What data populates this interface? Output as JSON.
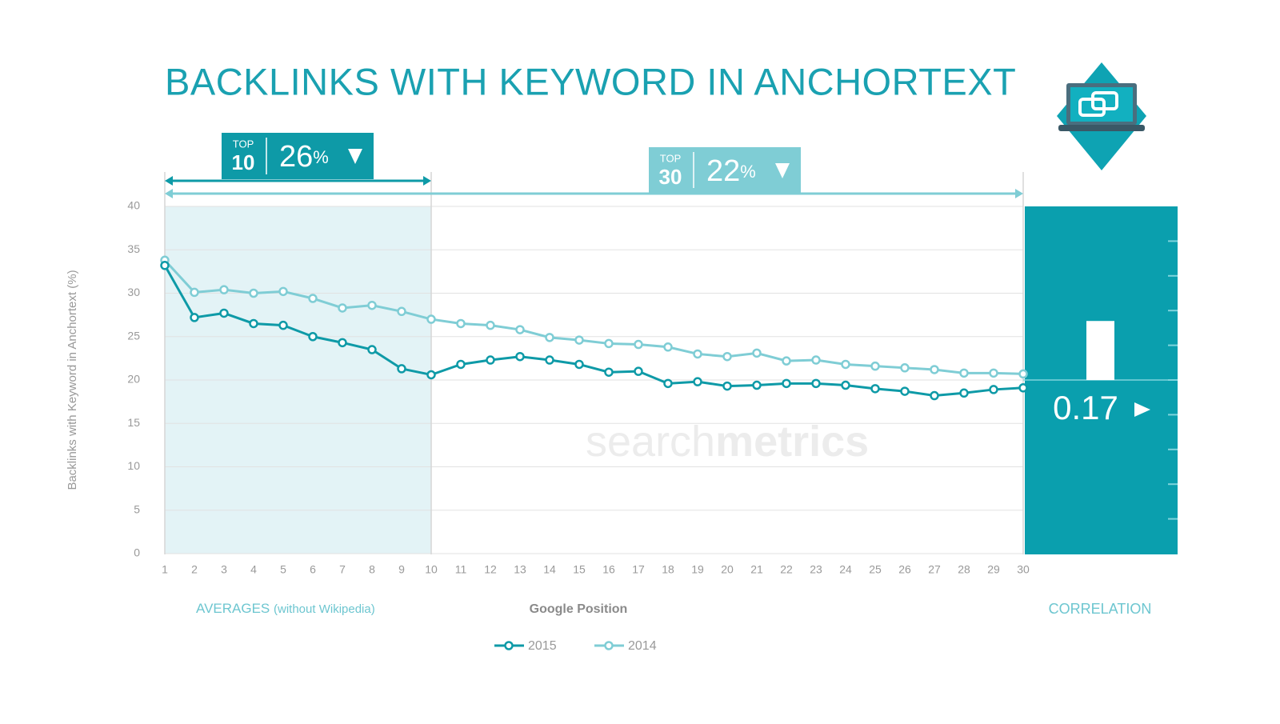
{
  "chart_data": {
    "type": "line",
    "title": "BACKLINKS WITH KEYWORD IN ANCHORTEXT",
    "y_label": "Backlinks with Keyword in Anchortext (%)",
    "x_label": "Google Position",
    "averages_label": "AVERAGES",
    "averages_note": "(without Wikipedia)",
    "correlation_label": "CORRELATION",
    "watermark": [
      "search",
      "metrics"
    ],
    "x": [
      1,
      2,
      3,
      4,
      5,
      6,
      7,
      8,
      9,
      10,
      11,
      12,
      13,
      14,
      15,
      16,
      17,
      18,
      19,
      20,
      21,
      22,
      23,
      24,
      25,
      26,
      27,
      28,
      29,
      30
    ],
    "xlim": [
      1,
      30
    ],
    "ylim": [
      0,
      40
    ],
    "yticks": [
      0,
      5,
      10,
      15,
      20,
      25,
      30,
      35,
      40
    ],
    "grid": true,
    "series": [
      {
        "name": "2015",
        "color": "#0e9aa7",
        "values": [
          33.2,
          27.2,
          27.7,
          26.5,
          26.3,
          25.0,
          24.3,
          23.5,
          21.3,
          20.6,
          21.8,
          22.3,
          22.7,
          22.3,
          21.8,
          20.9,
          21.0,
          19.6,
          19.8,
          19.3,
          19.4,
          19.6,
          19.6,
          19.4,
          19.0,
          18.7,
          18.2,
          18.5,
          18.9,
          19.1
        ]
      },
      {
        "name": "2014",
        "color": "#7fcdd5",
        "values": [
          33.8,
          30.1,
          30.4,
          30.0,
          30.2,
          29.4,
          28.3,
          28.6,
          27.9,
          27.0,
          26.5,
          26.3,
          25.8,
          24.9,
          24.6,
          24.2,
          24.1,
          23.8,
          23.0,
          22.7,
          23.1,
          22.2,
          22.3,
          21.8,
          21.6,
          21.4,
          21.2,
          20.8,
          20.8,
          20.7
        ]
      }
    ],
    "top10": {
      "tag": "TOP",
      "rank": 10,
      "value": 26,
      "unit": "%",
      "color": "#0e9aa7"
    },
    "top30": {
      "tag": "TOP",
      "rank": 30,
      "value": 22,
      "unit": "%",
      "color": "#7fcdd5"
    },
    "correlation": {
      "value": 0.17,
      "ylim": [
        -0.5,
        0.5
      ],
      "ticks": [
        -0.4,
        -0.3,
        -0.2,
        -0.1,
        0,
        0.1,
        0.2,
        0.3,
        0.4
      ],
      "color": "#0a9fae"
    }
  }
}
